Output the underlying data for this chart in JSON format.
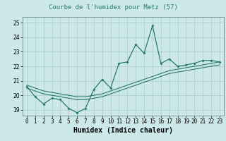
{
  "title": "Courbe de l'humidex pour Metz (57)",
  "xlabel": "Humidex (Indice chaleur)",
  "bg_color": "#cce8e8",
  "grid_color": "#aacccc",
  "line_color": "#2a7a6a",
  "x_values": [
    0,
    1,
    2,
    3,
    4,
    5,
    6,
    7,
    8,
    9,
    10,
    11,
    12,
    13,
    14,
    15,
    16,
    17,
    18,
    19,
    20,
    21,
    22,
    23
  ],
  "y_main": [
    20.6,
    19.9,
    19.4,
    19.8,
    19.7,
    19.1,
    18.8,
    19.1,
    20.4,
    21.1,
    20.5,
    22.2,
    22.3,
    23.5,
    22.9,
    24.8,
    22.2,
    22.5,
    22.0,
    22.1,
    22.2,
    22.4,
    22.4,
    22.3
  ],
  "y_smooth_low": [
    20.5,
    20.3,
    20.1,
    20.0,
    19.9,
    19.8,
    19.7,
    19.7,
    19.8,
    19.9,
    20.1,
    20.3,
    20.5,
    20.7,
    20.9,
    21.1,
    21.3,
    21.5,
    21.6,
    21.7,
    21.8,
    21.9,
    22.0,
    22.1
  ],
  "y_smooth_high": [
    20.7,
    20.5,
    20.3,
    20.2,
    20.1,
    20.0,
    19.9,
    19.9,
    20.0,
    20.1,
    20.3,
    20.5,
    20.7,
    20.9,
    21.1,
    21.3,
    21.5,
    21.7,
    21.8,
    21.9,
    22.0,
    22.1,
    22.2,
    22.3
  ],
  "ylim": [
    18.6,
    25.4
  ],
  "xlim": [
    -0.5,
    23.5
  ],
  "yticks": [
    19,
    20,
    21,
    22,
    23,
    24,
    25
  ],
  "xtick_labels": [
    "0",
    "1",
    "2",
    "3",
    "4",
    "5",
    "6",
    "7",
    "8",
    "9",
    "10",
    "11",
    "12",
    "13",
    "14",
    "15",
    "16",
    "17",
    "18",
    "19",
    "20",
    "21",
    "22",
    "23"
  ],
  "title_fontsize": 6.5,
  "label_fontsize": 7,
  "tick_fontsize": 5.5
}
